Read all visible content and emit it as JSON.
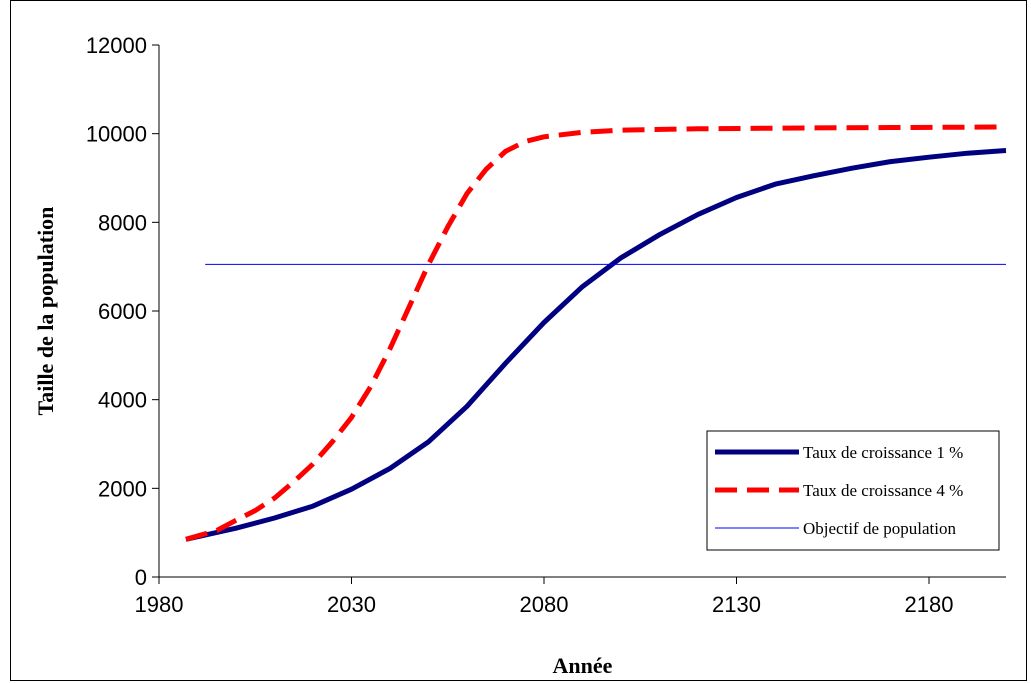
{
  "colors": {
    "series_1pct": "#000080",
    "series_4pct": "#ff0000",
    "objective": "#0000ff",
    "axis": "#000000"
  },
  "chart_data": {
    "type": "line",
    "title": "",
    "xlabel": "Année",
    "ylabel": "Taille de la population",
    "xlim": [
      1980,
      2200
    ],
    "ylim": [
      0,
      12000
    ],
    "xticks": [
      1980,
      2030,
      2080,
      2130,
      2180
    ],
    "xtick_labels": [
      "1980",
      "2030",
      "2080",
      "2130",
      "2180"
    ],
    "yticks": [
      0,
      2000,
      4000,
      6000,
      8000,
      10000,
      12000
    ],
    "ytick_labels": [
      "0",
      "2000",
      "4000",
      "6000",
      "8000",
      "10000",
      "12000"
    ],
    "grid": false,
    "legend_position": "bottom-right",
    "series": [
      {
        "name": "Taux de croissance 1 %",
        "style": "solid-thick",
        "x": [
          1987,
          2000,
          2010,
          2020,
          2030,
          2040,
          2050,
          2060,
          2070,
          2080,
          2090,
          2100,
          2110,
          2120,
          2130,
          2140,
          2150,
          2160,
          2170,
          2180,
          2190,
          2200
        ],
        "y": [
          850,
          1100,
          1330,
          1600,
          1980,
          2450,
          3050,
          3850,
          4820,
          5740,
          6550,
          7200,
          7720,
          8180,
          8560,
          8860,
          9050,
          9220,
          9370,
          9470,
          9560,
          9620
        ]
      },
      {
        "name": "Taux de croissance 4 %",
        "style": "dashed-thick",
        "x": [
          1987,
          1995,
          2000,
          2005,
          2010,
          2015,
          2020,
          2025,
          2030,
          2035,
          2040,
          2045,
          2050,
          2055,
          2060,
          2065,
          2070,
          2075,
          2080,
          2090,
          2100,
          2120,
          2150,
          2200
        ],
        "y": [
          850,
          1050,
          1280,
          1500,
          1780,
          2150,
          2550,
          3050,
          3600,
          4300,
          5150,
          6100,
          7050,
          7900,
          8650,
          9200,
          9600,
          9820,
          9930,
          10030,
          10080,
          10110,
          10130,
          10150
        ]
      },
      {
        "name": "Objectif de population",
        "style": "solid-thin",
        "x": [
          1992,
          2200
        ],
        "y": [
          7050,
          7050
        ]
      }
    ]
  }
}
